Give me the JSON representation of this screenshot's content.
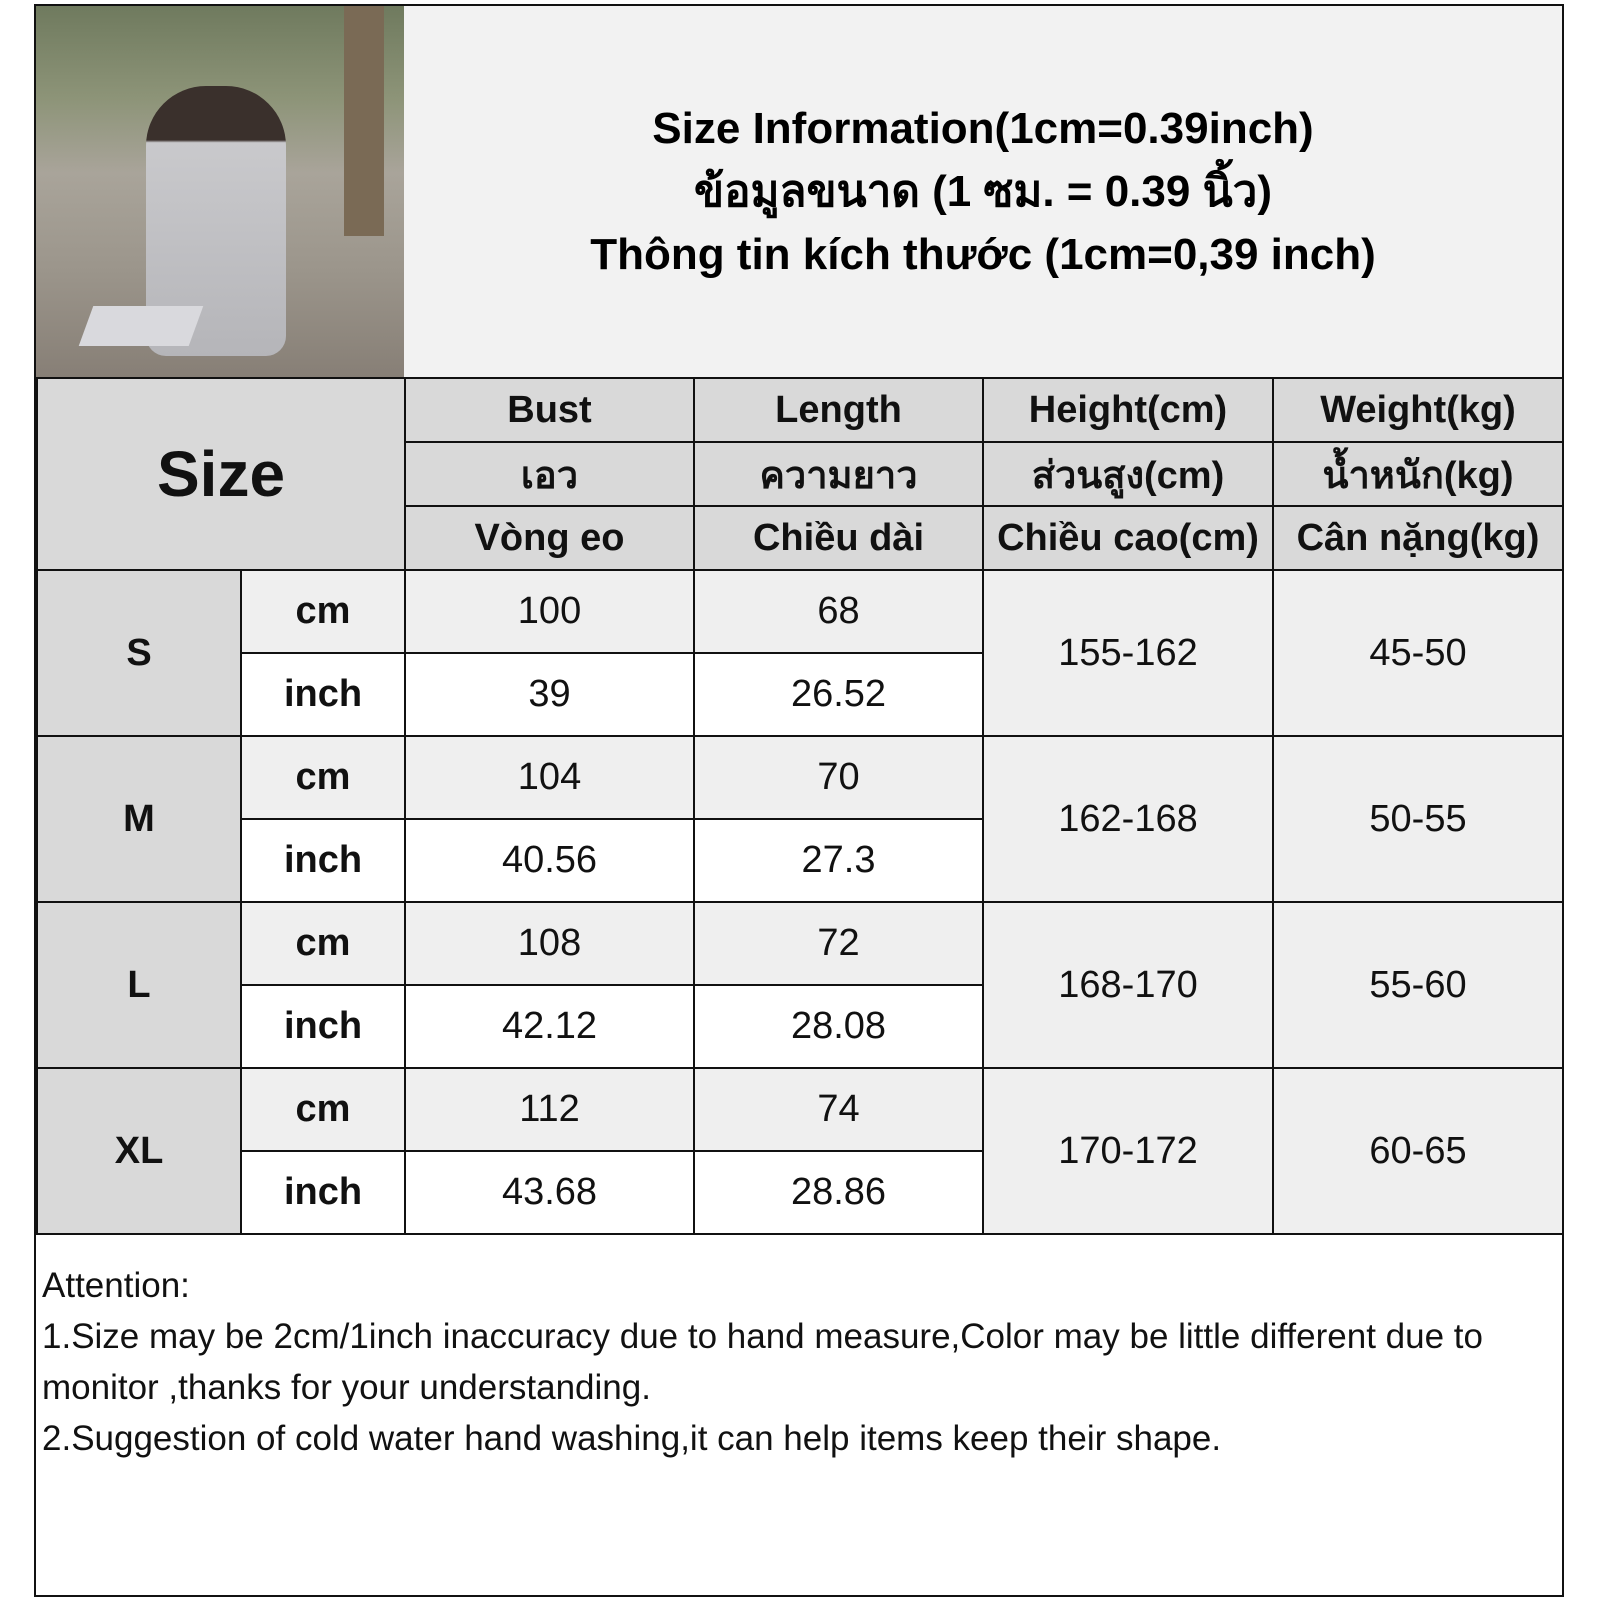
{
  "title": {
    "en": "Size Information(1cm=0.39inch)",
    "th": "ข้อมูลขนาด (1 ซม. = 0.39 นิ้ว)",
    "vi": "Thông tin kích thước (1cm=0,39 inch)"
  },
  "table": {
    "size_header": "Size",
    "columns": [
      {
        "en": "Bust",
        "th": "เอว",
        "vi": "Vòng eo"
      },
      {
        "en": "Length",
        "th": "ความยาว",
        "vi": "Chiều dài"
      },
      {
        "en": "Height(cm)",
        "th": "ส่วนสูง(cm)",
        "vi": "Chiều cao(cm)"
      },
      {
        "en": "Weight(kg)",
        "th": "น้ำหนัก(kg)",
        "vi": "Cân nặng(kg)"
      }
    ],
    "units": {
      "cm": "cm",
      "inch": "inch"
    },
    "rows": [
      {
        "size": "S",
        "cm": {
          "bust": "100",
          "length": "68"
        },
        "inch": {
          "bust": "39",
          "length": "26.52"
        },
        "height": "155-162",
        "weight": "45-50"
      },
      {
        "size": "M",
        "cm": {
          "bust": "104",
          "length": "70"
        },
        "inch": {
          "bust": "40.56",
          "length": "27.3"
        },
        "height": "162-168",
        "weight": "50-55"
      },
      {
        "size": "L",
        "cm": {
          "bust": "108",
          "length": "72"
        },
        "inch": {
          "bust": "42.12",
          "length": "28.08"
        },
        "height": "168-170",
        "weight": "55-60"
      },
      {
        "size": "XL",
        "cm": {
          "bust": "112",
          "length": "74"
        },
        "inch": {
          "bust": "43.68",
          "length": "28.86"
        },
        "height": "170-172",
        "weight": "60-65"
      }
    ]
  },
  "notes": {
    "heading": "Attention:",
    "items": [
      "1.Size may be 2cm/1inch inaccuracy due to hand measure,Color may be little different due to monitor ,thanks for your understanding.",
      "2.Suggestion of cold water hand washing,it can help items keep their shape."
    ]
  }
}
